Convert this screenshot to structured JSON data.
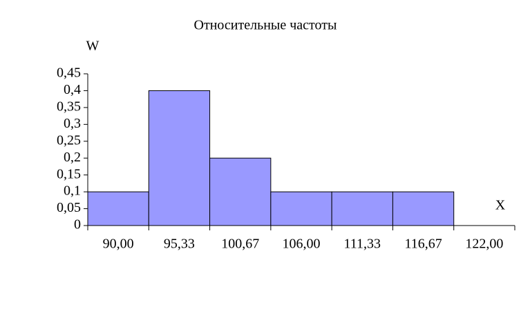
{
  "chart_data": {
    "type": "bar",
    "title": "Относительные частоты",
    "y_label": "W",
    "x_label": "X",
    "categories": [
      "90,00",
      "95,33",
      "100,67",
      "106,00",
      "111,33",
      "116,67",
      "122,00"
    ],
    "values": [
      0.1,
      0.4,
      0.2,
      0.1,
      0.1,
      0.1,
      null
    ],
    "color": "#9999ff",
    "ylim": [
      0,
      0.45
    ],
    "yticks": [
      0,
      {
        "value": 0.05,
        "label": "0,05"
      },
      {
        "value": 0.1,
        "label": "0,1"
      },
      {
        "value": 0.15,
        "label": "0,15"
      },
      {
        "value": 0.2,
        "label": "0,2"
      },
      {
        "value": 0.25,
        "label": "0,25"
      },
      {
        "value": 0.3,
        "label": "0,3"
      },
      {
        "value": 0.35,
        "label": "0,35"
      },
      {
        "value": 0.4,
        "label": "0,4"
      },
      {
        "value": 0.45,
        "label": "0,45"
      }
    ],
    "grid": false
  }
}
